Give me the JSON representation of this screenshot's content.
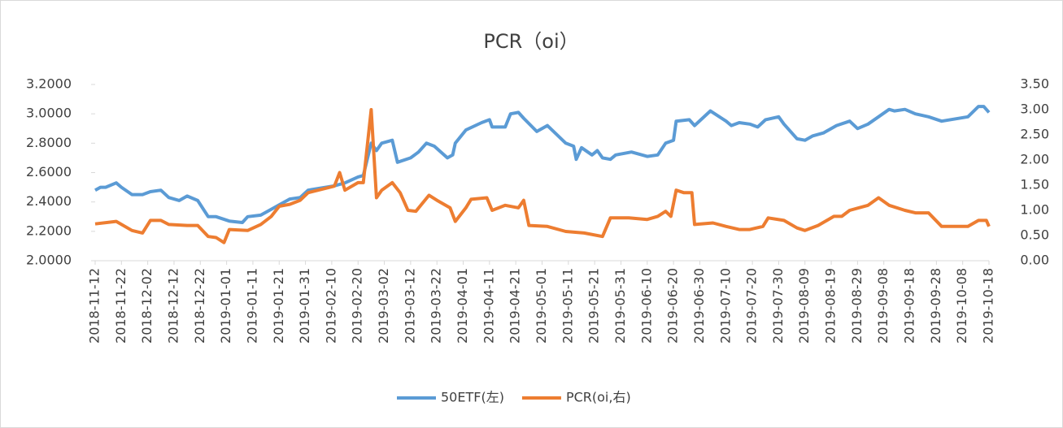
{
  "chart_data": {
    "type": "line",
    "title": "PCR（oi）",
    "xticks": [
      "2018-11-12",
      "2018-11-22",
      "2018-12-02",
      "2018-12-12",
      "2018-12-22",
      "2019-01-01",
      "2019-01-11",
      "2019-01-21",
      "2019-01-31",
      "2019-02-10",
      "2019-02-20",
      "2019-03-02",
      "2019-03-12",
      "2019-03-22",
      "2019-04-01",
      "2019-04-11",
      "2019-04-21",
      "2019-05-01",
      "2019-05-11",
      "2019-05-21",
      "2019-05-31",
      "2019-06-10",
      "2019-06-20",
      "2019-06-30",
      "2019-07-10",
      "2019-07-20",
      "2019-07-30",
      "2019-08-09",
      "2019-08-19",
      "2019-08-29",
      "2019-09-08",
      "2019-09-18",
      "2019-09-28",
      "2019-10-08",
      "2019-10-18"
    ],
    "xlim": [
      "2018-11-12",
      "2019-10-18"
    ],
    "ylim": [
      2,
      3.2
    ],
    "yticks": [
      {
        "value": 2,
        "label": "2.0000"
      },
      {
        "value": 2.2,
        "label": "2.2000"
      },
      {
        "value": 2.4,
        "label": "2.4000"
      },
      {
        "value": 2.6,
        "label": "2.6000"
      },
      {
        "value": 2.8,
        "label": "2.8000"
      },
      {
        "value": 3,
        "label": "3.0000"
      },
      {
        "value": 3.2,
        "label": "3.2000"
      }
    ],
    "y2lim": [
      0,
      3.5
    ],
    "y2ticks": [
      {
        "value": 0,
        "label": "0.00"
      },
      {
        "value": 0.5,
        "label": "0.50"
      },
      {
        "value": 1,
        "label": "1.00"
      },
      {
        "value": 1.5,
        "label": "1.50"
      },
      {
        "value": 2,
        "label": "2.00"
      },
      {
        "value": 2.5,
        "label": "2.50"
      },
      {
        "value": 3,
        "label": "3.00"
      },
      {
        "value": 3.5,
        "label": "3.50"
      }
    ],
    "legend": "bottom",
    "series": [
      {
        "name": "50ETF(左)",
        "color": "#5b9bd5",
        "axis": "y",
        "x": [
          "2018-11-12",
          "2018-11-14",
          "2018-11-16",
          "2018-11-20",
          "2018-11-22",
          "2018-11-26",
          "2018-11-30",
          "2018-12-03",
          "2018-12-07",
          "2018-12-10",
          "2018-12-14",
          "2018-12-17",
          "2018-12-21",
          "2018-12-25",
          "2018-12-28",
          "2019-01-02",
          "2019-01-07",
          "2019-01-09",
          "2019-01-14",
          "2019-01-17",
          "2019-01-21",
          "2019-01-25",
          "2019-01-29",
          "2019-02-01",
          "2019-02-11",
          "2019-02-15",
          "2019-02-20",
          "2019-02-22",
          "2019-02-25",
          "2019-02-27",
          "2019-03-01",
          "2019-03-05",
          "2019-03-07",
          "2019-03-12",
          "2019-03-15",
          "2019-03-18",
          "2019-03-21",
          "2019-03-26",
          "2019-03-28",
          "2019-03-29",
          "2019-04-02",
          "2019-04-08",
          "2019-04-11",
          "2019-04-12",
          "2019-04-17",
          "2019-04-19",
          "2019-04-22",
          "2019-04-24",
          "2019-04-29",
          "2019-05-03",
          "2019-05-10",
          "2019-05-13",
          "2019-05-14",
          "2019-05-16",
          "2019-05-20",
          "2019-05-22",
          "2019-05-24",
          "2019-05-27",
          "2019-05-29",
          "2019-06-04",
          "2019-06-10",
          "2019-06-14",
          "2019-06-17",
          "2019-06-20",
          "2019-06-21",
          "2019-06-26",
          "2019-06-28",
          "2019-07-01",
          "2019-07-04",
          "2019-07-10",
          "2019-07-12",
          "2019-07-15",
          "2019-07-19",
          "2019-07-22",
          "2019-07-25",
          "2019-07-30",
          "2019-08-01",
          "2019-08-06",
          "2019-08-09",
          "2019-08-12",
          "2019-08-16",
          "2019-08-21",
          "2019-08-26",
          "2019-08-29",
          "2019-09-02",
          "2019-09-06",
          "2019-09-10",
          "2019-09-12",
          "2019-09-16",
          "2019-09-20",
          "2019-09-25",
          "2019-09-30",
          "2019-10-10",
          "2019-10-14",
          "2019-10-16",
          "2019-10-18"
        ],
        "values": [
          2.48,
          2.5,
          2.5,
          2.53,
          2.5,
          2.45,
          2.45,
          2.47,
          2.48,
          2.43,
          2.41,
          2.44,
          2.41,
          2.3,
          2.3,
          2.27,
          2.26,
          2.3,
          2.31,
          2.34,
          2.38,
          2.42,
          2.43,
          2.48,
          2.51,
          2.53,
          2.57,
          2.58,
          2.8,
          2.75,
          2.8,
          2.82,
          2.67,
          2.7,
          2.74,
          2.8,
          2.78,
          2.7,
          2.72,
          2.8,
          2.89,
          2.94,
          2.96,
          2.91,
          2.91,
          3.0,
          3.01,
          2.97,
          2.88,
          2.92,
          2.8,
          2.78,
          2.69,
          2.77,
          2.72,
          2.75,
          2.7,
          2.69,
          2.72,
          2.74,
          2.71,
          2.72,
          2.8,
          2.82,
          2.95,
          2.96,
          2.92,
          2.97,
          3.02,
          2.95,
          2.92,
          2.94,
          2.93,
          2.91,
          2.96,
          2.98,
          2.93,
          2.83,
          2.82,
          2.85,
          2.87,
          2.92,
          2.95,
          2.9,
          2.93,
          2.98,
          3.03,
          3.02,
          3.03,
          3.0,
          2.98,
          2.95,
          2.98,
          3.05,
          3.05,
          3.01
        ]
      },
      {
        "name": "PCR(oi,右)",
        "color": "#ed7d31",
        "axis": "y2",
        "x": [
          "2018-11-12",
          "2018-11-20",
          "2018-11-26",
          "2018-11-30",
          "2018-12-03",
          "2018-12-07",
          "2018-12-10",
          "2018-12-17",
          "2018-12-21",
          "2018-12-25",
          "2018-12-28",
          "2018-12-31",
          "2019-01-02",
          "2019-01-09",
          "2019-01-14",
          "2019-01-18",
          "2019-01-21",
          "2019-01-25",
          "2019-01-29",
          "2019-02-01",
          "2019-02-11",
          "2019-02-13",
          "2019-02-15",
          "2019-02-20",
          "2019-02-22",
          "2019-02-25",
          "2019-02-27",
          "2019-03-01",
          "2019-03-05",
          "2019-03-08",
          "2019-03-11",
          "2019-03-14",
          "2019-03-19",
          "2019-03-22",
          "2019-03-27",
          "2019-03-29",
          "2019-04-02",
          "2019-04-04",
          "2019-04-10",
          "2019-04-12",
          "2019-04-17",
          "2019-04-22",
          "2019-04-24",
          "2019-04-26",
          "2019-05-03",
          "2019-05-10",
          "2019-05-17",
          "2019-05-24",
          "2019-05-27",
          "2019-06-03",
          "2019-06-10",
          "2019-06-14",
          "2019-06-17",
          "2019-06-19",
          "2019-06-21",
          "2019-06-24",
          "2019-06-27",
          "2019-06-28",
          "2019-07-05",
          "2019-07-10",
          "2019-07-15",
          "2019-07-19",
          "2019-07-24",
          "2019-07-26",
          "2019-08-01",
          "2019-08-06",
          "2019-08-09",
          "2019-08-14",
          "2019-08-20",
          "2019-08-23",
          "2019-08-26",
          "2019-09-02",
          "2019-09-06",
          "2019-09-10",
          "2019-09-16",
          "2019-09-20",
          "2019-09-25",
          "2019-09-30",
          "2019-10-10",
          "2019-10-14",
          "2019-10-17",
          "2019-10-18"
        ],
        "values": [
          0.73,
          0.78,
          0.6,
          0.55,
          0.8,
          0.8,
          0.72,
          0.7,
          0.7,
          0.48,
          0.46,
          0.36,
          0.62,
          0.6,
          0.72,
          0.88,
          1.08,
          1.12,
          1.2,
          1.35,
          1.48,
          1.75,
          1.4,
          1.55,
          1.55,
          3.0,
          1.25,
          1.4,
          1.55,
          1.35,
          1.0,
          0.98,
          1.3,
          1.2,
          1.05,
          0.78,
          1.05,
          1.22,
          1.25,
          1.0,
          1.1,
          1.05,
          1.2,
          0.7,
          0.68,
          0.58,
          0.55,
          0.48,
          0.85,
          0.85,
          0.82,
          0.88,
          0.98,
          0.88,
          1.4,
          1.35,
          1.35,
          0.72,
          0.75,
          0.68,
          0.62,
          0.62,
          0.68,
          0.85,
          0.8,
          0.65,
          0.6,
          0.7,
          0.88,
          0.88,
          1.0,
          1.1,
          1.25,
          1.1,
          1.0,
          0.95,
          0.95,
          0.68,
          0.68,
          0.8,
          0.8,
          0.68
        ]
      }
    ]
  }
}
